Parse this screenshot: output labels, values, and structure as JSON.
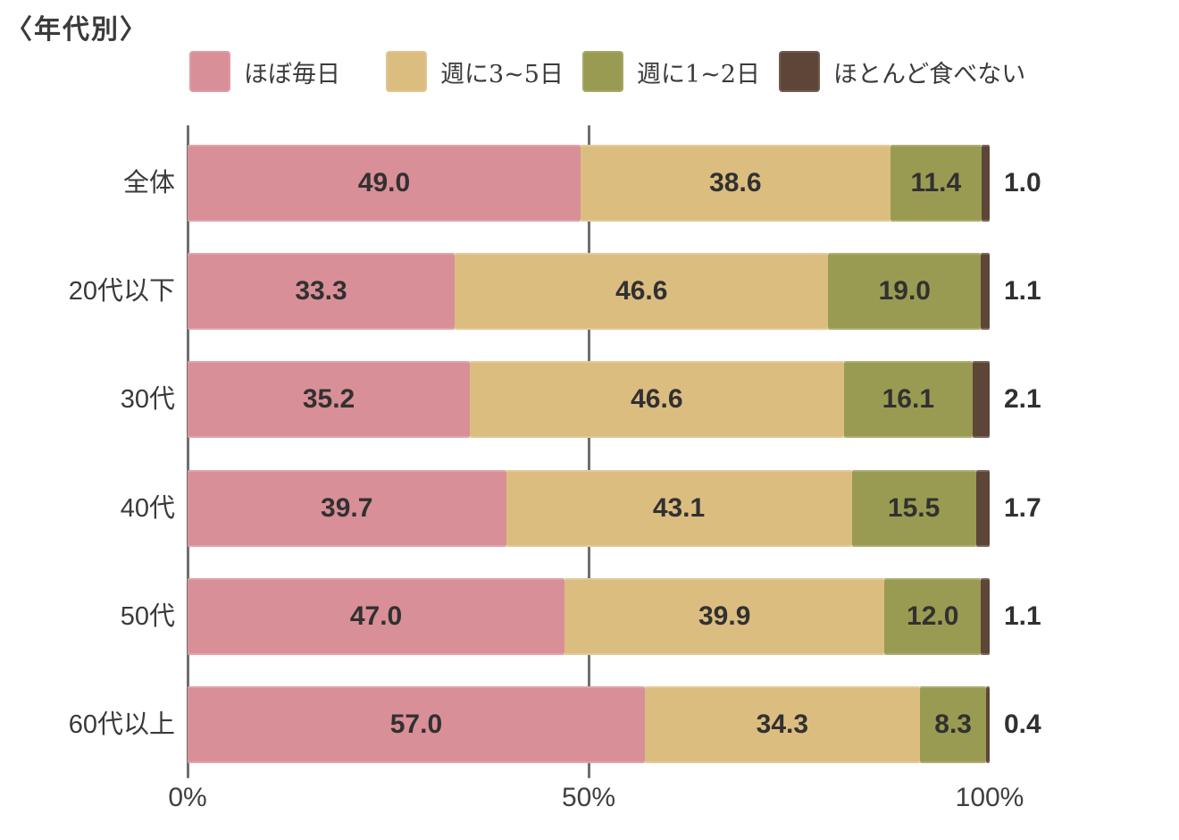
{
  "accent_colors": {
    "series1": "#d98f97",
    "series2": "#dcbd80",
    "series3": "#9a9b52",
    "series4": "#5d4637",
    "gridline": "#6f6f6f",
    "text": "#3a3a3a"
  },
  "chart_data": {
    "type": "bar",
    "stacked": true,
    "orientation": "horizontal",
    "title": "〈年代別〉",
    "categories": [
      "全体",
      "20代以下",
      "30代",
      "40代",
      "50代",
      "60代以上"
    ],
    "series": [
      {
        "name": "ほぼ毎日",
        "color": "#d98f97",
        "values": [
          49.0,
          33.3,
          35.2,
          39.7,
          47.0,
          57.0
        ]
      },
      {
        "name": "週に3~5日",
        "color": "#dcbd80",
        "values": [
          38.6,
          46.6,
          46.6,
          43.1,
          39.9,
          34.3
        ]
      },
      {
        "name": "週に1~2日",
        "color": "#9a9b52",
        "values": [
          11.4,
          19.0,
          16.1,
          15.5,
          12.0,
          8.3
        ]
      },
      {
        "name": "ほとんど食べない",
        "color": "#5d4637",
        "values": [
          1.0,
          1.1,
          2.1,
          1.7,
          1.1,
          0.4
        ]
      }
    ],
    "x_axis": {
      "range": [
        0,
        100
      ],
      "ticks": [
        {
          "label": "0%",
          "value": 0
        },
        {
          "label": "50%",
          "value": 50
        },
        {
          "label": "100%",
          "value": 100
        }
      ]
    },
    "gridlines_at": [
      0,
      50
    ],
    "legend_position": "top",
    "value_label_format": "one-decimal",
    "last_segment_label_position": "outside-right"
  }
}
